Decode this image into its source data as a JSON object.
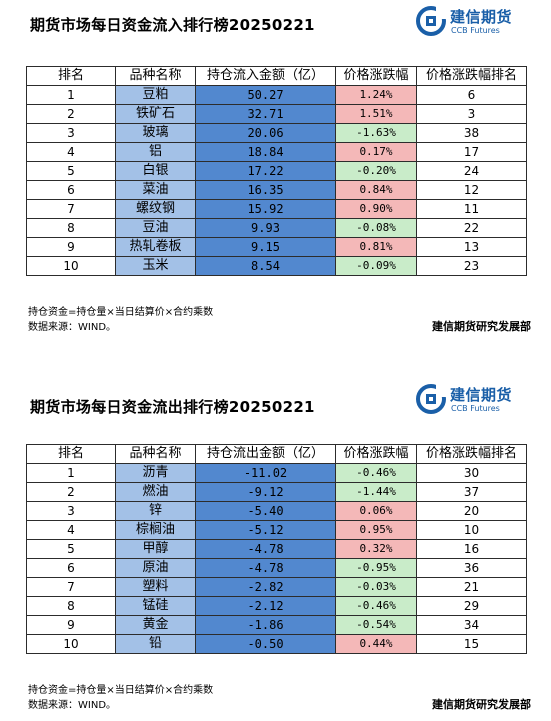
{
  "brand": {
    "name_cn": "建信期货",
    "name_en": "CCB Futures"
  },
  "inflow": {
    "title": "期货市场每日资金流入排行榜20250221",
    "headers": [
      "排名",
      "品种名称",
      "持仓流入金额（亿）",
      "价格涨跌幅",
      "价格涨跌幅排名"
    ],
    "rows": [
      [
        "1",
        "豆粕",
        "50.27",
        "1.24%",
        "6"
      ],
      [
        "2",
        "铁矿石",
        "32.71",
        "1.51%",
        "3"
      ],
      [
        "3",
        "玻璃",
        "20.06",
        "-1.63%",
        "38"
      ],
      [
        "4",
        "铝",
        "18.84",
        "0.17%",
        "17"
      ],
      [
        "5",
        "白银",
        "17.22",
        "-0.20%",
        "24"
      ],
      [
        "6",
        "菜油",
        "16.35",
        "0.84%",
        "12"
      ],
      [
        "7",
        "螺纹钢",
        "15.92",
        "0.90%",
        "11"
      ],
      [
        "8",
        "豆油",
        "9.93",
        "-0.08%",
        "22"
      ],
      [
        "9",
        "热轧卷板",
        "9.15",
        "0.81%",
        "13"
      ],
      [
        "10",
        "玉米",
        "8.54",
        "-0.09%",
        "23"
      ]
    ],
    "note1": "持仓资金=持仓量×当日结算价×合约乘数",
    "note2": "数据来源：WIND。",
    "dept": "建信期货研究发展部"
  },
  "outflow": {
    "title": "期货市场每日资金流出排行榜20250221",
    "headers": [
      "排名",
      "品种名称",
      "持仓流出金额（亿）",
      "价格涨跌幅",
      "价格涨跌幅排名"
    ],
    "rows": [
      [
        "1",
        "沥青",
        "-11.02",
        "-0.46%",
        "30"
      ],
      [
        "2",
        "燃油",
        "-9.12",
        "-1.44%",
        "37"
      ],
      [
        "3",
        "锌",
        "-5.40",
        "0.06%",
        "20"
      ],
      [
        "4",
        "棕榈油",
        "-5.12",
        "0.95%",
        "10"
      ],
      [
        "5",
        "甲醇",
        "-4.78",
        "0.32%",
        "16"
      ],
      [
        "6",
        "原油",
        "-4.78",
        "-0.95%",
        "36"
      ],
      [
        "7",
        "塑料",
        "-2.82",
        "-0.03%",
        "21"
      ],
      [
        "8",
        "锰硅",
        "-2.12",
        "-0.46%",
        "29"
      ],
      [
        "9",
        "黄金",
        "-1.86",
        "-0.54%",
        "34"
      ],
      [
        "10",
        "铅",
        "-0.50",
        "0.44%",
        "15"
      ]
    ],
    "note1": "持仓资金=持仓量×当日结算价×合约乘数",
    "note2": "数据来源：WIND。",
    "dept": "建信期货研究发展部"
  },
  "colors": {
    "up": "#f4b8b8",
    "down": "#c9ecc9",
    "variety": "#a3c1e7",
    "amount": "#5288cf",
    "brand": "#1a5fa8"
  }
}
